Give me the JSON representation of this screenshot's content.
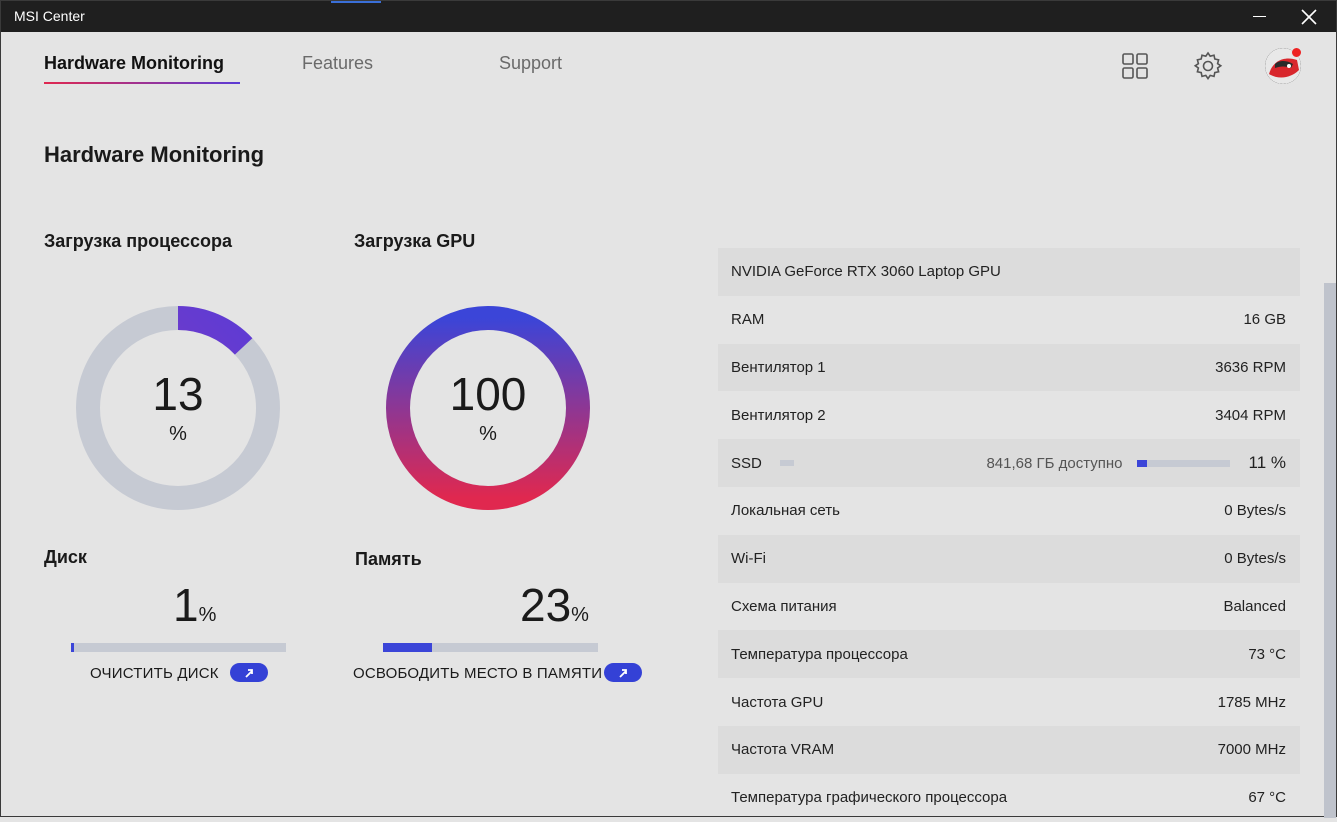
{
  "window": {
    "title": "MSI Center"
  },
  "nav": {
    "tabs": [
      "Hardware Monitoring",
      "Features",
      "Support"
    ],
    "active": "Hardware Monitoring"
  },
  "page": {
    "title": "Hardware Monitoring"
  },
  "cpu": {
    "label": "Загрузка процессора",
    "value": "13",
    "unit": "%",
    "fraction": 0.13
  },
  "gpu": {
    "label": "Загрузка GPU",
    "value": "100",
    "unit": "%",
    "fraction": 1.0
  },
  "disk": {
    "label": "Диск",
    "value": "1",
    "unit": "%",
    "fraction": 0.01,
    "action": "ОЧИСТИТЬ ДИСК"
  },
  "memory": {
    "label": "Память",
    "value": "23",
    "unit": "%",
    "fraction": 0.23,
    "action": "ОСВОБОДИТЬ МЕСТО В ПАМЯТИ"
  },
  "info": {
    "gpu_name": "NVIDIA GeForce RTX 3060 Laptop GPU",
    "rows": [
      {
        "label": "RAM",
        "value": "16 GB"
      },
      {
        "label": "Вентилятор 1",
        "value": "3636 RPM"
      },
      {
        "label": "Вентилятор 2",
        "value": "3404 RPM"
      },
      {
        "label": "SSD",
        "available": "841,68 ГБ доступно",
        "value": "11 %",
        "fraction": 0.11
      },
      {
        "label": "Локальная сеть",
        "value": "0 Bytes/s"
      },
      {
        "label": "Wi-Fi",
        "value": "0 Bytes/s"
      },
      {
        "label": "Схема питания",
        "value": "Balanced"
      },
      {
        "label": "Температура процессора",
        "value": "73 °C"
      },
      {
        "label": "Частота GPU",
        "value": "1785 MHz"
      },
      {
        "label": "Частота VRAM",
        "value": "7000 MHz"
      },
      {
        "label": "Температура графического процессора",
        "value": "67 °C"
      }
    ]
  },
  "colors": {
    "accent_blue": "#3b45d8",
    "gradient_start": "#e0284f",
    "gradient_end": "#3b45d8",
    "track": "#c6cad3"
  },
  "icons": [
    "minimize-icon",
    "close-icon",
    "grid-icon",
    "gear-icon",
    "avatar-icon",
    "arrow-up-icon"
  ]
}
